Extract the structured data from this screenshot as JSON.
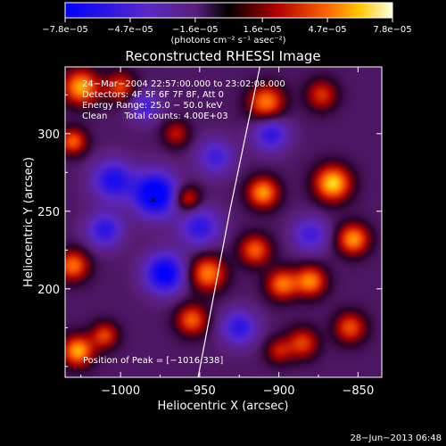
{
  "chart_data": {
    "type": "heatmap",
    "title": "Reconstructed RHESSI Image",
    "xlabel": "Heliocentric X (arcsec)",
    "ylabel": "Heliocentric Y (arcsec)",
    "xlim": [
      -1035,
      -835
    ],
    "ylim": [
      143,
      343
    ],
    "x_ticks": [
      -1000,
      -950,
      -900,
      -850
    ],
    "y_ticks": [
      200,
      250,
      300
    ],
    "x_tick_labels": [
      "−1000",
      "−950",
      "−900",
      "−850"
    ],
    "y_tick_labels": [
      "200",
      "250",
      "300"
    ],
    "colorbar": {
      "min": -7.8e-05,
      "max": 7.8e-05,
      "tick_values": [
        -7.8e-05,
        -4.7e-05,
        -1.6e-05,
        1.6e-05,
        4.7e-05,
        7.8e-05
      ],
      "tick_labels": [
        "−7.8e−05",
        "−4.7e−05",
        "−1.6e−05",
        "1.6e−05",
        "4.7e−05",
        "7.8e−05"
      ],
      "units": "(photons cm⁻² s⁻¹ asec⁻²)"
    },
    "annotations": [
      "24−Mar−2004 22:57:00.000 to 23:02:08.000",
      "Detectors: 4F 5F 6F 7F 8F, Att 0",
      "Energy Range: 25.0 − 50.0 keV",
      "Clean      Total counts: 4.00E+03"
    ],
    "peak_label": "Position of Peak = [−1016,338]",
    "limb_line": [
      {
        "x": -951,
        "y": 143
      },
      {
        "x": -931,
        "y": 250
      },
      {
        "x": -912,
        "y": 343
      }
    ],
    "features": [
      {
        "x": -978,
        "y": 261,
        "amp": -1.0,
        "sigma": 10
      },
      {
        "x": -1005,
        "y": 270,
        "amp": -0.7,
        "sigma": 9
      },
      {
        "x": -972,
        "y": 210,
        "amp": -0.9,
        "sigma": 9
      },
      {
        "x": -1010,
        "y": 238,
        "amp": -0.6,
        "sigma": 8
      },
      {
        "x": -950,
        "y": 240,
        "amp": -0.6,
        "sigma": 9
      },
      {
        "x": -940,
        "y": 285,
        "amp": -0.5,
        "sigma": 8
      },
      {
        "x": -905,
        "y": 300,
        "amp": -0.6,
        "sigma": 8
      },
      {
        "x": -880,
        "y": 235,
        "amp": -0.5,
        "sigma": 8
      },
      {
        "x": -925,
        "y": 175,
        "amp": -0.6,
        "sigma": 8
      },
      {
        "x": -985,
        "y": 318,
        "amp": -0.5,
        "sigma": 7
      },
      {
        "x": -1025,
        "y": 330,
        "amp": 0.9,
        "sigma": 8
      },
      {
        "x": -1000,
        "y": 330,
        "amp": 0.6,
        "sigma": 7
      },
      {
        "x": -1030,
        "y": 295,
        "amp": 0.7,
        "sigma": 6
      },
      {
        "x": -1030,
        "y": 215,
        "amp": 0.75,
        "sigma": 7
      },
      {
        "x": -1010,
        "y": 170,
        "amp": 0.6,
        "sigma": 6
      },
      {
        "x": -1027,
        "y": 160,
        "amp": 0.9,
        "sigma": 7
      },
      {
        "x": -955,
        "y": 180,
        "amp": 0.7,
        "sigma": 7
      },
      {
        "x": -945,
        "y": 210,
        "amp": 0.8,
        "sigma": 8
      },
      {
        "x": -958,
        "y": 258,
        "amp": 0.6,
        "sigma": 6
      },
      {
        "x": -965,
        "y": 300,
        "amp": 0.45,
        "sigma": 6
      },
      {
        "x": -910,
        "y": 262,
        "amp": 0.85,
        "sigma": 7
      },
      {
        "x": -908,
        "y": 320,
        "amp": 0.8,
        "sigma": 8
      },
      {
        "x": -915,
        "y": 225,
        "amp": 0.7,
        "sigma": 7
      },
      {
        "x": -898,
        "y": 203,
        "amp": 0.75,
        "sigma": 7
      },
      {
        "x": -873,
        "y": 325,
        "amp": 0.55,
        "sigma": 7
      },
      {
        "x": -866,
        "y": 268,
        "amp": 1.0,
        "sigma": 8
      },
      {
        "x": -880,
        "y": 205,
        "amp": 0.8,
        "sigma": 7
      },
      {
        "x": -853,
        "y": 232,
        "amp": 0.85,
        "sigma": 7
      },
      {
        "x": -885,
        "y": 165,
        "amp": 0.6,
        "sigma": 7
      },
      {
        "x": -855,
        "y": 175,
        "amp": 0.65,
        "sigma": 7
      },
      {
        "x": -900,
        "y": 160,
        "amp": 0.45,
        "sigma": 6
      }
    ]
  },
  "footer": {
    "timestamp": "28−Jun−2013 06:48"
  }
}
